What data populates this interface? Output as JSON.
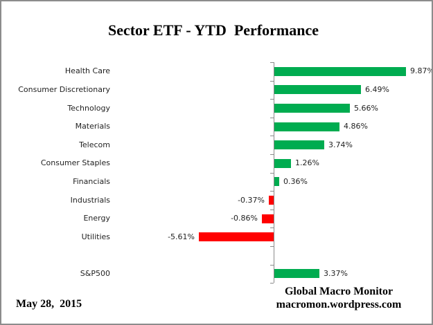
{
  "title": "Sector ETF - YTD  Performance",
  "chart_data": {
    "type": "bar",
    "orientation": "horizontal",
    "title": "Sector ETF - YTD  Performance",
    "categories": [
      "Health Care",
      "Consumer Discretionary",
      "Technology",
      "Materials",
      "Telecom",
      "Consumer Staples",
      "Financials",
      "Industrials",
      "Energy",
      "Utilities",
      "",
      "S&P500"
    ],
    "values": [
      9.87,
      6.49,
      5.66,
      4.86,
      3.74,
      1.26,
      0.36,
      -0.37,
      -0.86,
      -5.61,
      null,
      3.37
    ],
    "value_labels": [
      "9.87%",
      "6.49%",
      "5.66%",
      "4.86%",
      "3.74%",
      "1.26%",
      "0.36%",
      "-0.37%",
      "-0.86%",
      "-5.61%",
      null,
      "3.37%"
    ],
    "xlim": [
      -6,
      12
    ],
    "grid": false,
    "legend": false,
    "positive_color": "#00AC50",
    "negative_color": "#FF0000",
    "axis_color": "#8A8A8A",
    "value_label_color": "#1F1F1F",
    "category_label_color": "#1F1F1F"
  },
  "footer": {
    "date": "May 28,  2015",
    "attribution_line1": "Global Macro Monitor",
    "attribution_line2": "macromon.wordpress.com"
  }
}
